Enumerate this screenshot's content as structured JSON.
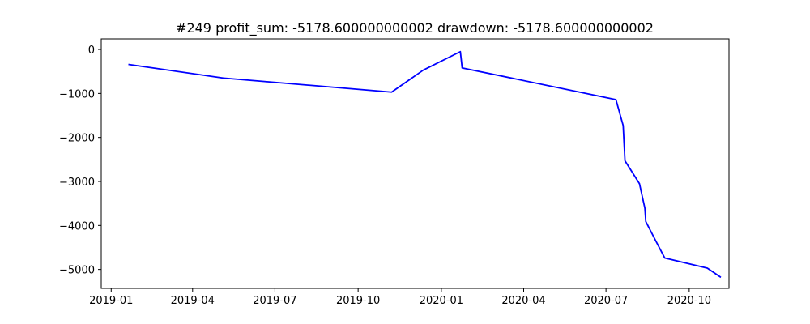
{
  "chart_data": {
    "type": "line",
    "title": "#249   profit_sum: -5178.600000000002 drawdown: -5178.600000000002",
    "xlabel": "",
    "ylabel": "",
    "x_axis": {
      "type": "date",
      "range": [
        "2018-12-21",
        "2020-11-14"
      ],
      "ticks": [
        {
          "date": "2019-01-01",
          "label": "2019-01"
        },
        {
          "date": "2019-04-01",
          "label": "2019-04"
        },
        {
          "date": "2019-07-01",
          "label": "2019-07"
        },
        {
          "date": "2019-10-01",
          "label": "2019-10"
        },
        {
          "date": "2020-01-01",
          "label": "2020-01"
        },
        {
          "date": "2020-04-01",
          "label": "2020-04"
        },
        {
          "date": "2020-07-01",
          "label": "2020-07"
        },
        {
          "date": "2020-10-01",
          "label": "2020-10"
        }
      ]
    },
    "y_axis": {
      "range": [
        -5430,
        240
      ],
      "ticks": [
        {
          "value": 0,
          "label": "0"
        },
        {
          "value": -1000,
          "label": "−1000"
        },
        {
          "value": -2000,
          "label": "−2000"
        },
        {
          "value": -3000,
          "label": "−3000"
        },
        {
          "value": -4000,
          "label": "−4000"
        },
        {
          "value": -5000,
          "label": "−5000"
        }
      ]
    },
    "grid": false,
    "series": [
      {
        "color": "#0000ff",
        "points": [
          {
            "x": "2019-01-20",
            "y": -340
          },
          {
            "x": "2019-05-05",
            "y": -650
          },
          {
            "x": "2019-11-07",
            "y": -970
          },
          {
            "x": "2019-12-12",
            "y": -470
          },
          {
            "x": "2020-01-22",
            "y": -50
          },
          {
            "x": "2020-01-24",
            "y": -420
          },
          {
            "x": "2020-07-12",
            "y": -1140
          },
          {
            "x": "2020-07-20",
            "y": -1730
          },
          {
            "x": "2020-07-22",
            "y": -2530
          },
          {
            "x": "2020-08-07",
            "y": -3050
          },
          {
            "x": "2020-08-13",
            "y": -3610
          },
          {
            "x": "2020-08-14",
            "y": -3910
          },
          {
            "x": "2020-08-23",
            "y": -4270
          },
          {
            "x": "2020-09-04",
            "y": -4740
          },
          {
            "x": "2020-10-21",
            "y": -4970
          },
          {
            "x": "2020-11-05",
            "y": -5178.6
          }
        ]
      }
    ]
  }
}
